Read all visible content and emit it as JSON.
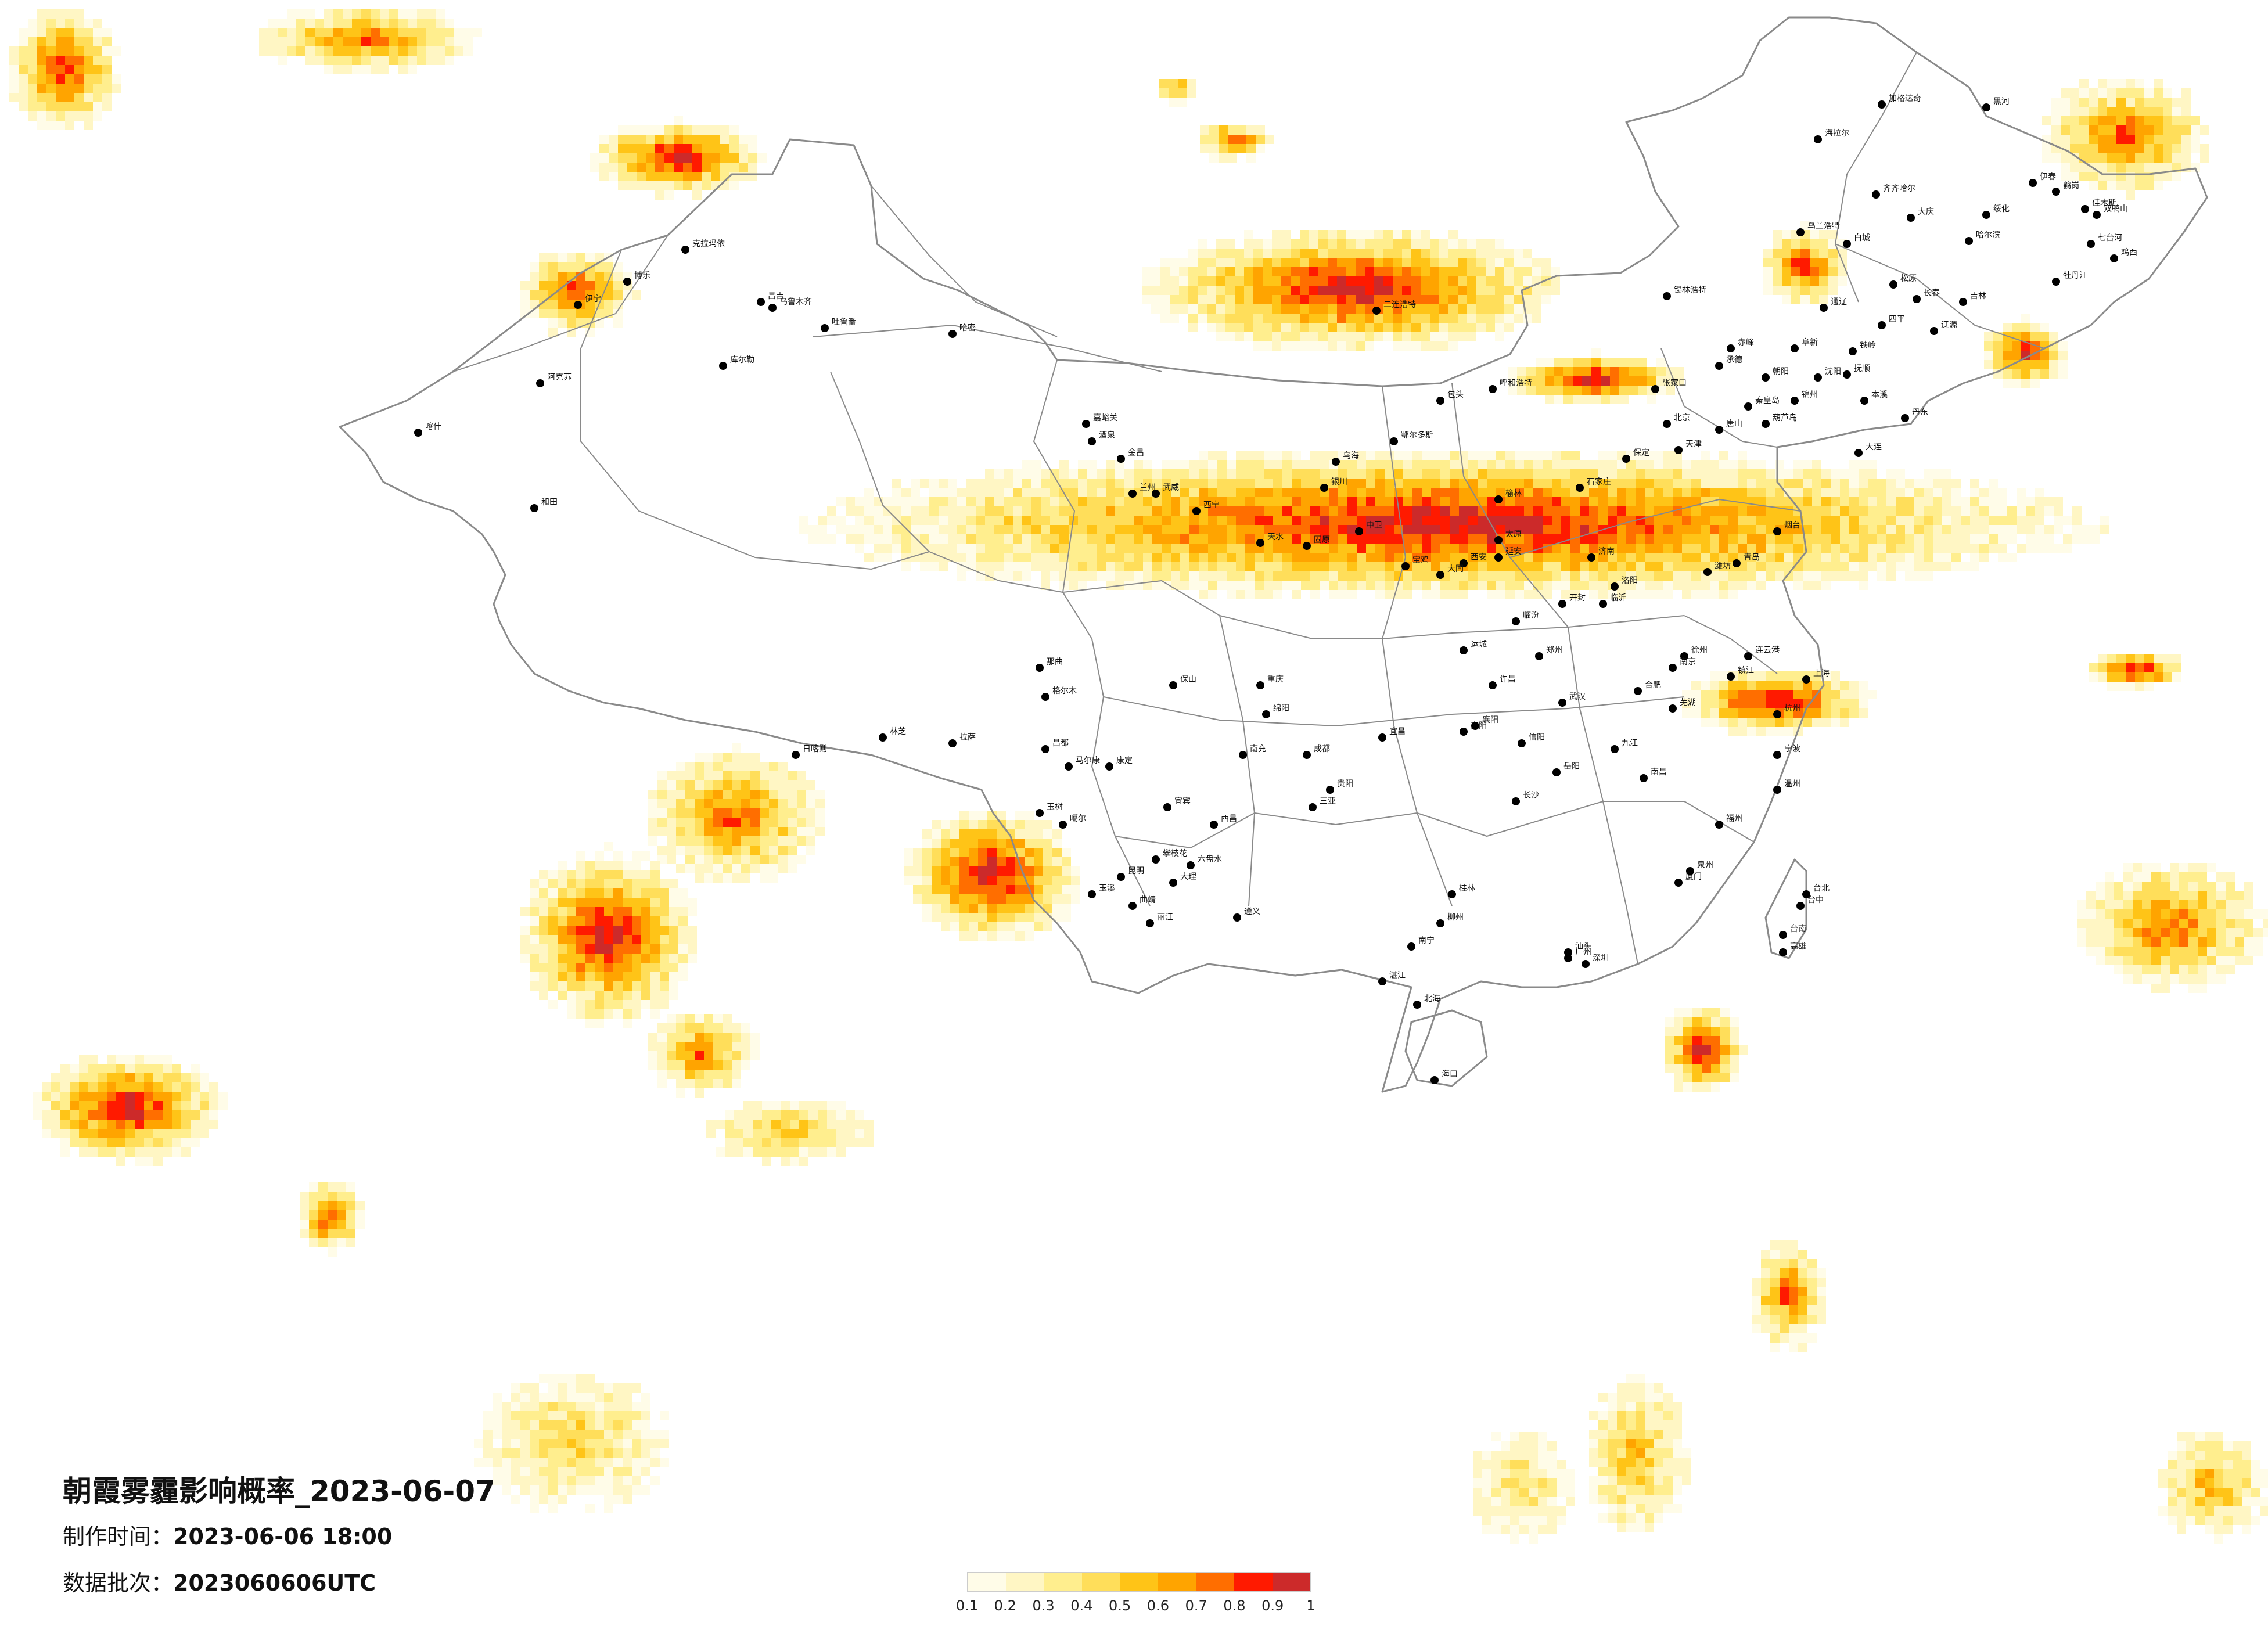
{
  "title": "朝霞雾霾影响概率_2023-06-07",
  "production_time": {
    "label": "制作时间：",
    "value": "2023-06-06 18:00"
  },
  "data_batch": {
    "label": "数据批次：",
    "value": "2023060606UTC"
  },
  "legend": {
    "colors": [
      "#fffce8",
      "#fff6c4",
      "#ffee8e",
      "#ffde5a",
      "#ffc417",
      "#ffa400",
      "#ff6e00",
      "#ff1a00",
      "#cc2a2a"
    ],
    "ticks": [
      "0.1",
      "0.2",
      "0.3",
      "0.4",
      "0.5",
      "0.6",
      "0.7",
      "0.8",
      "0.9",
      "1"
    ]
  },
  "colors": {
    "boundary": "#8a8a8a",
    "city_dot": "#000000",
    "background": "#ffffff"
  },
  "cities": [
    {
      "name": "加格达奇"
    },
    {
      "name": "黑河"
    },
    {
      "name": "海拉尔"
    },
    {
      "name": "伊春"
    },
    {
      "name": "鹤岗"
    },
    {
      "name": "齐齐哈尔"
    },
    {
      "name": "佳木斯"
    },
    {
      "name": "双鸭山"
    },
    {
      "name": "乌兰浩特"
    },
    {
      "name": "绥化"
    },
    {
      "name": "大庆"
    },
    {
      "name": "哈尔滨"
    },
    {
      "name": "七台河"
    },
    {
      "name": "鸡西"
    },
    {
      "name": "白城"
    },
    {
      "name": "松原"
    },
    {
      "name": "牡丹江"
    },
    {
      "name": "锡林浩特"
    },
    {
      "name": "长春"
    },
    {
      "name": "吉林"
    },
    {
      "name": "通辽"
    },
    {
      "name": "四平"
    },
    {
      "name": "辽源"
    },
    {
      "name": "赤峰"
    },
    {
      "name": "阜新"
    },
    {
      "name": "铁岭"
    },
    {
      "name": "抚顺"
    },
    {
      "name": "沈阳"
    },
    {
      "name": "朝阳"
    },
    {
      "name": "锦州"
    },
    {
      "name": "本溪"
    },
    {
      "name": "丹东"
    },
    {
      "name": "葫芦岛"
    },
    {
      "name": "大连"
    },
    {
      "name": "秦皇岛"
    },
    {
      "name": "唐山"
    },
    {
      "name": "承德"
    },
    {
      "name": "张家口"
    },
    {
      "name": "北京"
    },
    {
      "name": "天津"
    },
    {
      "name": "保定"
    },
    {
      "name": "石家庄"
    },
    {
      "name": "呼和浩特"
    },
    {
      "name": "包头"
    },
    {
      "name": "鄂尔多斯"
    },
    {
      "name": "乌海"
    },
    {
      "name": "二连浩特"
    },
    {
      "name": "克拉玛依"
    },
    {
      "name": "昌吉"
    },
    {
      "name": "乌鲁木齐"
    },
    {
      "name": "吐鲁番"
    },
    {
      "name": "哈密"
    },
    {
      "name": "库尔勒"
    },
    {
      "name": "阿克苏"
    },
    {
      "name": "喀什"
    },
    {
      "name": "和田"
    },
    {
      "name": "伊宁"
    },
    {
      "name": "博乐"
    },
    {
      "name": "嘉峪关"
    },
    {
      "name": "酒泉"
    },
    {
      "name": "金昌"
    },
    {
      "name": "武威"
    },
    {
      "name": "兰州"
    },
    {
      "name": "西宁"
    },
    {
      "name": "银川"
    },
    {
      "name": "中卫"
    },
    {
      "name": "固原"
    },
    {
      "name": "天水"
    },
    {
      "name": "宝鸡"
    },
    {
      "name": "西安"
    },
    {
      "name": "延安"
    },
    {
      "name": "榆林"
    },
    {
      "name": "太原"
    },
    {
      "name": "大同"
    },
    {
      "name": "临汾"
    },
    {
      "name": "运城"
    },
    {
      "name": "郑州"
    },
    {
      "name": "洛阳"
    },
    {
      "name": "开封"
    },
    {
      "name": "许昌"
    },
    {
      "name": "南阳"
    },
    {
      "name": "信阳"
    },
    {
      "name": "济南"
    },
    {
      "name": "青岛"
    },
    {
      "name": "烟台"
    },
    {
      "name": "潍坊"
    },
    {
      "name": "临沂"
    },
    {
      "name": "徐州"
    },
    {
      "name": "连云港"
    },
    {
      "name": "南京"
    },
    {
      "name": "镇江"
    },
    {
      "name": "上海"
    },
    {
      "name": "杭州"
    },
    {
      "name": "宁波"
    },
    {
      "name": "温州"
    },
    {
      "name": "合肥"
    },
    {
      "name": "芜湖"
    },
    {
      "name": "武汉"
    },
    {
      "name": "宜昌"
    },
    {
      "name": "襄阳"
    },
    {
      "name": "长沙"
    },
    {
      "name": "岳阳"
    },
    {
      "name": "南昌"
    },
    {
      "name": "九江"
    },
    {
      "name": "福州"
    },
    {
      "name": "厦门"
    },
    {
      "name": "泉州"
    },
    {
      "name": "台北"
    },
    {
      "name": "台中"
    },
    {
      "name": "台南"
    },
    {
      "name": "高雄"
    },
    {
      "name": "广州"
    },
    {
      "name": "深圳"
    },
    {
      "name": "汕头"
    },
    {
      "name": "湛江"
    },
    {
      "name": "南宁"
    },
    {
      "name": "桂林"
    },
    {
      "name": "柳州"
    },
    {
      "name": "北海"
    },
    {
      "name": "海口"
    },
    {
      "name": "三亚"
    },
    {
      "name": "贵阳"
    },
    {
      "name": "遵义"
    },
    {
      "name": "六盘水"
    },
    {
      "name": "昆明"
    },
    {
      "name": "大理"
    },
    {
      "name": "丽江"
    },
    {
      "name": "曲靖"
    },
    {
      "name": "玉溪"
    },
    {
      "name": "保山"
    },
    {
      "name": "成都"
    },
    {
      "name": "重庆"
    },
    {
      "name": "绵阳"
    },
    {
      "name": "南充"
    },
    {
      "name": "宜宾"
    },
    {
      "name": "攀枝花"
    },
    {
      "name": "西昌"
    },
    {
      "name": "康定"
    },
    {
      "name": "马尔康"
    },
    {
      "name": "拉萨"
    },
    {
      "name": "日喀则"
    },
    {
      "name": "林芝"
    },
    {
      "name": "昌都"
    },
    {
      "name": "那曲"
    },
    {
      "name": "格尔木"
    },
    {
      "name": "玉树"
    },
    {
      "name": "噶尔"
    }
  ]
}
